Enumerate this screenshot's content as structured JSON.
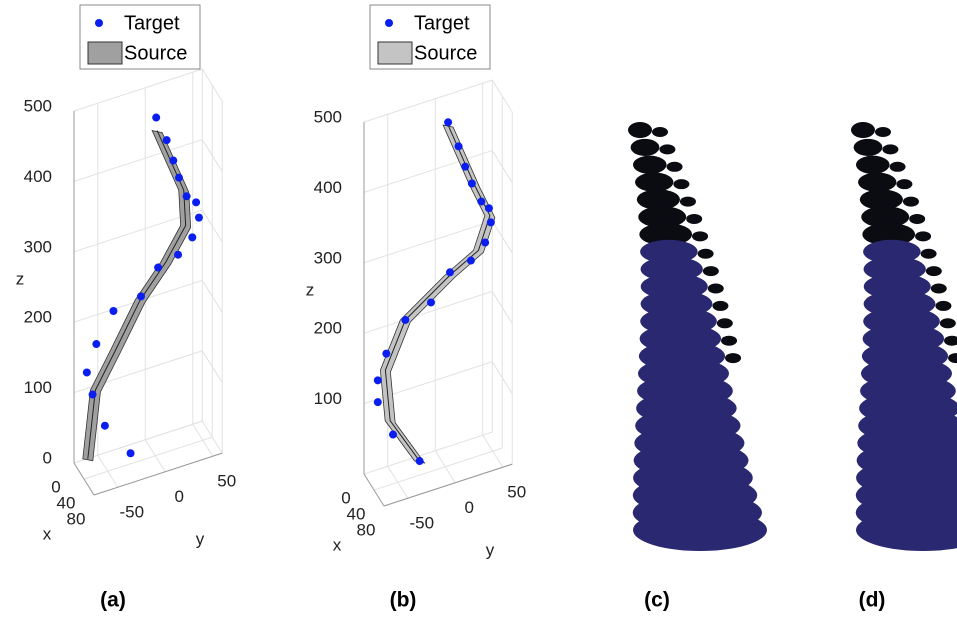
{
  "chart_data": [
    {
      "type": "scatter3d",
      "caption": "(a)",
      "xlabel": "x",
      "ylabel": "y",
      "zlabel": "z",
      "legend": "top",
      "grid": true,
      "xlim": [
        0,
        80
      ],
      "ylim": [
        -75,
        60
      ],
      "zlim": [
        0,
        500
      ],
      "xticks": [
        0,
        40,
        80
      ],
      "yticks": [
        -50,
        0,
        50
      ],
      "zticks": [
        0,
        100,
        200,
        300,
        400,
        500
      ],
      "series": [
        {
          "name": "Target",
          "color": "#0a1ef0",
          "x": [
            40,
            40,
            40,
            40,
            40,
            40,
            40,
            40,
            40,
            40,
            40,
            40,
            40,
            40,
            40,
            40,
            40
          ],
          "y": [
            1,
            12,
            19,
            25,
            33,
            43,
            46,
            39,
            24,
            3,
            -15,
            -44,
            -62,
            -72,
            -66,
            -53,
            -26
          ],
          "z": [
            480,
            443,
            411,
            384,
            354,
            341,
            318,
            293,
            275,
            266,
            233,
            225,
            186,
            150,
            116,
            66,
            15
          ]
        },
        {
          "name": "Source",
          "color": "#a0a0a0",
          "x": [
            40,
            40,
            40,
            40,
            40,
            40,
            40,
            40
          ],
          "y": [
            2,
            30,
            32,
            11,
            -16,
            -42,
            -63,
            -71
          ],
          "z": [
            461,
            364,
            313,
            270,
            228,
            168,
            121,
            27
          ]
        }
      ]
    },
    {
      "type": "scatter3d",
      "caption": "(b)",
      "xlabel": "x",
      "ylabel": "y",
      "zlabel": "z",
      "legend": "top",
      "grid": true,
      "xlim": [
        0,
        80
      ],
      "ylim": [
        -75,
        60
      ],
      "zlim": [
        0,
        500
      ],
      "xticks": [
        0,
        40,
        80
      ],
      "yticks": [
        -50,
        0,
        50
      ],
      "zticks": [
        100,
        200,
        300,
        400,
        500
      ],
      "series": [
        {
          "name": "Target",
          "color": "#0a1ef0",
          "x": [
            40,
            40,
            40,
            40,
            40,
            40,
            40,
            40,
            40,
            40,
            40,
            40,
            40,
            40,
            40,
            40,
            40
          ],
          "y": [
            3,
            14,
            21,
            28,
            38,
            46,
            48,
            42,
            27,
            5,
            -15,
            -42,
            -62,
            -71,
            -71,
            -55,
            -27
          ],
          "z": [
            488,
            449,
            417,
            390,
            360,
            347,
            326,
            300,
            281,
            274,
            240,
            227,
            188,
            154,
            123,
            70,
            20
          ]
        },
        {
          "name": "Source",
          "color": "#c4c4c4",
          "x": [
            40,
            40,
            40,
            40,
            40,
            40,
            40,
            40,
            40
          ],
          "y": [
            3,
            31,
            47,
            35,
            5,
            -42,
            -63,
            -58,
            -27
          ],
          "z": [
            484,
            386,
            336,
            292,
            270,
            227,
            165,
            91,
            20
          ]
        }
      ]
    }
  ],
  "figures": [
    {
      "caption": "(c)"
    },
    {
      "caption": "(d)"
    }
  ]
}
